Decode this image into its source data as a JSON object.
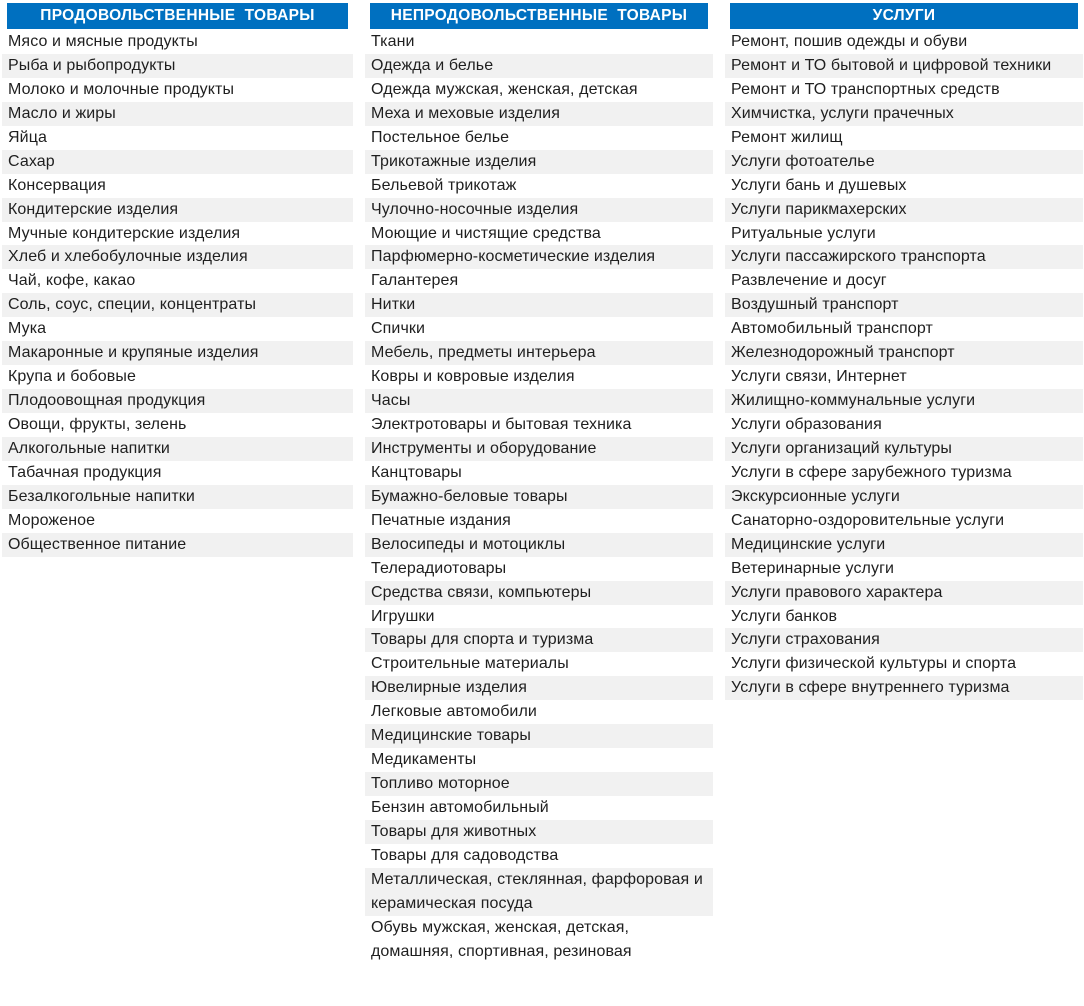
{
  "theme": {
    "background": "#ffffff",
    "header_bg": "#0070c0",
    "header_text": "#ffffff",
    "stripe_bg": "#f1f1f1",
    "text_color": "#1f1f1f"
  },
  "sections": [
    {
      "id": "food-products",
      "title": "ПРОДОВОЛЬСТВЕННЫЕ  ТОВАРЫ",
      "items": [
        "Мясо и мясные продукты",
        "Рыба и рыбопродукты",
        "Молоко и молочные продукты",
        "Масло и жиры",
        "Яйца",
        "Сахар",
        "Консервация",
        "Кондитерские изделия",
        "Мучные кондитерские изделия",
        "Хлеб и хлебобулочные изделия",
        "Чай, кофе, какао",
        "Соль, соус, специи, концентраты",
        "Мука",
        "Макаронные и крупяные изделия",
        "Крупа и бобовые",
        "Плодоовощная продукция",
        "Овощи, фрукты, зелень",
        "Алкогольные напитки",
        "Табачная продукция",
        "Безалкогольные напитки",
        "Мороженое",
        "Общественное питание"
      ]
    },
    {
      "id": "nonfood-products",
      "title": "НЕПРОДОВОЛЬСТВЕННЫЕ  ТОВАРЫ",
      "items": [
        "Ткани",
        "Одежда и белье",
        "Одежда мужская, женская, детская",
        "Меха и меховые изделия",
        "Постельное белье",
        "Трикотажные изделия",
        "Бельевой трикотаж",
        "Чулочно-носочные изделия",
        "Моющие и чистящие средства",
        "Парфюмерно-косметические изделия",
        "Галантерея",
        "Нитки",
        "Спички",
        "Мебель, предметы интерьера",
        "Ковры и ковровые изделия",
        "Часы",
        "Электротовары и бытовая техника",
        "Инструменты и оборудование",
        "Канцтовары",
        "Бумажно-беловые товары",
        "Печатные издания",
        "Велосипеды и мотоциклы",
        "Телерадиотовары",
        "Средства связи, компьютеры",
        "Игрушки",
        "Товары для спорта и туризма",
        "Строительные материалы",
        "Ювелирные изделия",
        "Легковые автомобили",
        "Медицинские товары",
        "Медикаменты",
        "Топливо моторное",
        "Бензин автомобильный",
        "Товары для животных",
        "Товары для садоводства",
        "Металлическая, стеклянная, фарфоровая и керамическая посуда",
        "Обувь мужская, женская, детская, домашняя, спортивная, резиновая"
      ]
    },
    {
      "id": "services",
      "title": "УСЛУГИ",
      "items": [
        "Ремонт, пошив одежды и обуви",
        "Ремонт и ТО бытовой и цифровой техники",
        "Ремонт и ТО транспортных средств",
        "Химчистка, услуги прачечных",
        "Ремонт жилищ",
        "Услуги фотоателье",
        "Услуги бань и душевых",
        "Услуги парикмахерских",
        "Ритуальные услуги",
        "Услуги пассажирского транспорта",
        "Развлечение и досуг",
        "Воздушный транспорт",
        "Автомобильный транспорт",
        "Железнодорожный транспорт",
        "Услуги связи, Интернет",
        "Жилищно-коммунальные услуги",
        "Услуги образования",
        "Услуги организаций культуры",
        "Услуги в сфере зарубежного туризма",
        "Экскурсионные услуги",
        "Санаторно-оздоровительные услуги",
        "Медицинские услуги",
        "Ветеринарные услуги",
        "Услуги правового характера",
        "Услуги банков",
        "Услуги страхования",
        "Услуги физической культуры и спорта",
        "Услуги в сфере внутреннего туризма"
      ]
    }
  ]
}
